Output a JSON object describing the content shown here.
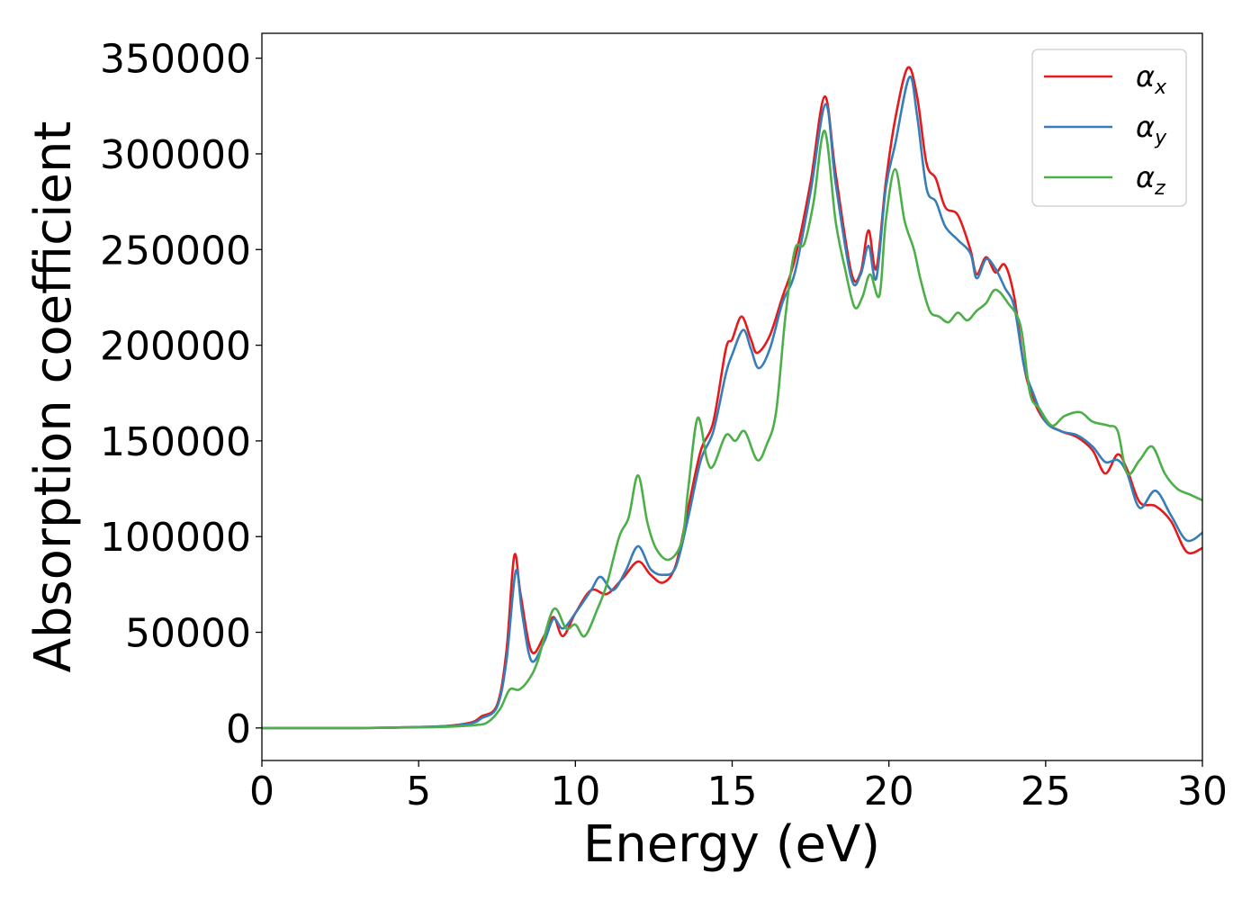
{
  "chart_data": {
    "type": "line",
    "xlabel": "Energy (eV)",
    "ylabel": "Absorption coefficient",
    "xlim": [
      0,
      30
    ],
    "ylim": [
      -17000,
      363000
    ],
    "xticks": [
      0,
      5,
      10,
      15,
      20,
      25,
      30
    ],
    "yticks": [
      0,
      50000,
      100000,
      150000,
      200000,
      250000,
      300000,
      350000
    ],
    "grid": false,
    "legend_position": "top-right",
    "series": [
      {
        "name": "αx",
        "label_base": "α",
        "label_sub": "x",
        "color": "#e41a1c",
        "points": [
          [
            0,
            0
          ],
          [
            3,
            0
          ],
          [
            5,
            500
          ],
          [
            6,
            1200
          ],
          [
            6.7,
            3000
          ],
          [
            7.0,
            6000
          ],
          [
            7.5,
            12000
          ],
          [
            7.8,
            40000
          ],
          [
            8.05,
            90000
          ],
          [
            8.25,
            70000
          ],
          [
            8.6,
            40000
          ],
          [
            9.0,
            48000
          ],
          [
            9.3,
            58000
          ],
          [
            9.6,
            48000
          ],
          [
            10.0,
            60000
          ],
          [
            10.5,
            72000
          ],
          [
            11.0,
            70000
          ],
          [
            11.5,
            78000
          ],
          [
            12.0,
            87000
          ],
          [
            12.4,
            80000
          ],
          [
            12.8,
            76000
          ],
          [
            13.2,
            85000
          ],
          [
            13.6,
            115000
          ],
          [
            14.0,
            145000
          ],
          [
            14.4,
            160000
          ],
          [
            14.8,
            198000
          ],
          [
            15.0,
            203000
          ],
          [
            15.3,
            215000
          ],
          [
            15.6,
            203000
          ],
          [
            15.8,
            196000
          ],
          [
            16.2,
            205000
          ],
          [
            16.6,
            225000
          ],
          [
            17.0,
            245000
          ],
          [
            17.5,
            285000
          ],
          [
            17.95,
            330000
          ],
          [
            18.3,
            290000
          ],
          [
            18.8,
            238000
          ],
          [
            19.1,
            238000
          ],
          [
            19.35,
            260000
          ],
          [
            19.6,
            240000
          ],
          [
            19.9,
            285000
          ],
          [
            20.2,
            318000
          ],
          [
            20.6,
            345000
          ],
          [
            20.9,
            330000
          ],
          [
            21.2,
            295000
          ],
          [
            21.5,
            287000
          ],
          [
            21.8,
            272000
          ],
          [
            22.2,
            268000
          ],
          [
            22.6,
            250000
          ],
          [
            22.8,
            237000
          ],
          [
            23.1,
            246000
          ],
          [
            23.4,
            238000
          ],
          [
            23.7,
            242000
          ],
          [
            24.0,
            225000
          ],
          [
            24.3,
            190000
          ],
          [
            24.6,
            172000
          ],
          [
            25.0,
            160000
          ],
          [
            25.5,
            155000
          ],
          [
            26.0,
            152000
          ],
          [
            26.5,
            145000
          ],
          [
            26.9,
            133000
          ],
          [
            27.3,
            143000
          ],
          [
            27.6,
            135000
          ],
          [
            28.0,
            118000
          ],
          [
            28.5,
            116000
          ],
          [
            29.0,
            108000
          ],
          [
            29.5,
            92000
          ],
          [
            30.0,
            94000
          ]
        ]
      },
      {
        "name": "αy",
        "label_base": "α",
        "label_sub": "y",
        "color": "#377eb8",
        "points": [
          [
            0,
            0
          ],
          [
            3,
            0
          ],
          [
            5,
            500
          ],
          [
            6,
            1100
          ],
          [
            6.7,
            2500
          ],
          [
            7.0,
            5000
          ],
          [
            7.5,
            11000
          ],
          [
            7.8,
            35000
          ],
          [
            8.1,
            82000
          ],
          [
            8.3,
            60000
          ],
          [
            8.6,
            35000
          ],
          [
            9.0,
            45000
          ],
          [
            9.3,
            57000
          ],
          [
            9.6,
            52000
          ],
          [
            10.0,
            60000
          ],
          [
            10.5,
            72000
          ],
          [
            10.8,
            79000
          ],
          [
            11.2,
            72000
          ],
          [
            11.6,
            82000
          ],
          [
            12.0,
            95000
          ],
          [
            12.4,
            83000
          ],
          [
            12.8,
            80000
          ],
          [
            13.2,
            84000
          ],
          [
            13.6,
            110000
          ],
          [
            14.0,
            140000
          ],
          [
            14.4,
            155000
          ],
          [
            14.8,
            185000
          ],
          [
            15.0,
            195000
          ],
          [
            15.35,
            208000
          ],
          [
            15.6,
            198000
          ],
          [
            15.85,
            188000
          ],
          [
            16.2,
            198000
          ],
          [
            16.6,
            222000
          ],
          [
            17.0,
            238000
          ],
          [
            17.5,
            280000
          ],
          [
            17.98,
            326000
          ],
          [
            18.3,
            285000
          ],
          [
            18.8,
            235000
          ],
          [
            19.1,
            237000
          ],
          [
            19.35,
            252000
          ],
          [
            19.6,
            235000
          ],
          [
            19.9,
            282000
          ],
          [
            20.2,
            305000
          ],
          [
            20.65,
            340000
          ],
          [
            20.9,
            320000
          ],
          [
            21.2,
            282000
          ],
          [
            21.5,
            275000
          ],
          [
            21.8,
            262000
          ],
          [
            22.2,
            255000
          ],
          [
            22.6,
            248000
          ],
          [
            22.8,
            235000
          ],
          [
            23.1,
            245000
          ],
          [
            23.4,
            240000
          ],
          [
            23.7,
            230000
          ],
          [
            24.0,
            220000
          ],
          [
            24.3,
            190000
          ],
          [
            24.6,
            175000
          ],
          [
            25.0,
            160000
          ],
          [
            25.5,
            155000
          ],
          [
            26.0,
            153000
          ],
          [
            26.5,
            147000
          ],
          [
            26.9,
            139000
          ],
          [
            27.3,
            140000
          ],
          [
            27.6,
            133000
          ],
          [
            28.0,
            115000
          ],
          [
            28.5,
            124000
          ],
          [
            29.0,
            111000
          ],
          [
            29.5,
            98000
          ],
          [
            30.0,
            102000
          ]
        ]
      },
      {
        "name": "αz",
        "label_base": "α",
        "label_sub": "z",
        "color": "#4daf4a",
        "points": [
          [
            0,
            0
          ],
          [
            3,
            0
          ],
          [
            5,
            300
          ],
          [
            6,
            700
          ],
          [
            6.8,
            1500
          ],
          [
            7.2,
            3000
          ],
          [
            7.6,
            10000
          ],
          [
            7.9,
            20000
          ],
          [
            8.2,
            20000
          ],
          [
            8.5,
            25000
          ],
          [
            8.8,
            35000
          ],
          [
            9.3,
            62000
          ],
          [
            9.7,
            52000
          ],
          [
            10.0,
            54000
          ],
          [
            10.3,
            48000
          ],
          [
            10.7,
            62000
          ],
          [
            11.0,
            75000
          ],
          [
            11.4,
            100000
          ],
          [
            11.7,
            110000
          ],
          [
            12.0,
            132000
          ],
          [
            12.3,
            107000
          ],
          [
            12.6,
            93000
          ],
          [
            13.0,
            88000
          ],
          [
            13.4,
            98000
          ],
          [
            13.6,
            125000
          ],
          [
            13.9,
            162000
          ],
          [
            14.2,
            140000
          ],
          [
            14.4,
            137000
          ],
          [
            14.8,
            153000
          ],
          [
            15.1,
            150000
          ],
          [
            15.4,
            155000
          ],
          [
            15.8,
            140000
          ],
          [
            16.1,
            148000
          ],
          [
            16.4,
            165000
          ],
          [
            16.7,
            215000
          ],
          [
            17.0,
            250000
          ],
          [
            17.3,
            253000
          ],
          [
            17.6,
            275000
          ],
          [
            17.95,
            312000
          ],
          [
            18.3,
            265000
          ],
          [
            18.6,
            240000
          ],
          [
            18.9,
            220000
          ],
          [
            19.15,
            225000
          ],
          [
            19.4,
            237000
          ],
          [
            19.7,
            226000
          ],
          [
            19.9,
            265000
          ],
          [
            20.2,
            292000
          ],
          [
            20.5,
            265000
          ],
          [
            20.8,
            250000
          ],
          [
            21.0,
            235000
          ],
          [
            21.3,
            218000
          ],
          [
            21.6,
            215000
          ],
          [
            21.9,
            212000
          ],
          [
            22.2,
            217000
          ],
          [
            22.5,
            213000
          ],
          [
            22.8,
            218000
          ],
          [
            23.1,
            222000
          ],
          [
            23.4,
            229000
          ],
          [
            23.8,
            222000
          ],
          [
            24.2,
            210000
          ],
          [
            24.5,
            175000
          ],
          [
            24.8,
            167000
          ],
          [
            25.2,
            158000
          ],
          [
            25.6,
            163000
          ],
          [
            26.1,
            165000
          ],
          [
            26.5,
            160000
          ],
          [
            27.0,
            158000
          ],
          [
            27.3,
            155000
          ],
          [
            27.6,
            133000
          ],
          [
            28.0,
            140000
          ],
          [
            28.4,
            147000
          ],
          [
            28.8,
            133000
          ],
          [
            29.2,
            125000
          ],
          [
            29.6,
            122000
          ],
          [
            30.0,
            119000
          ]
        ]
      }
    ]
  }
}
